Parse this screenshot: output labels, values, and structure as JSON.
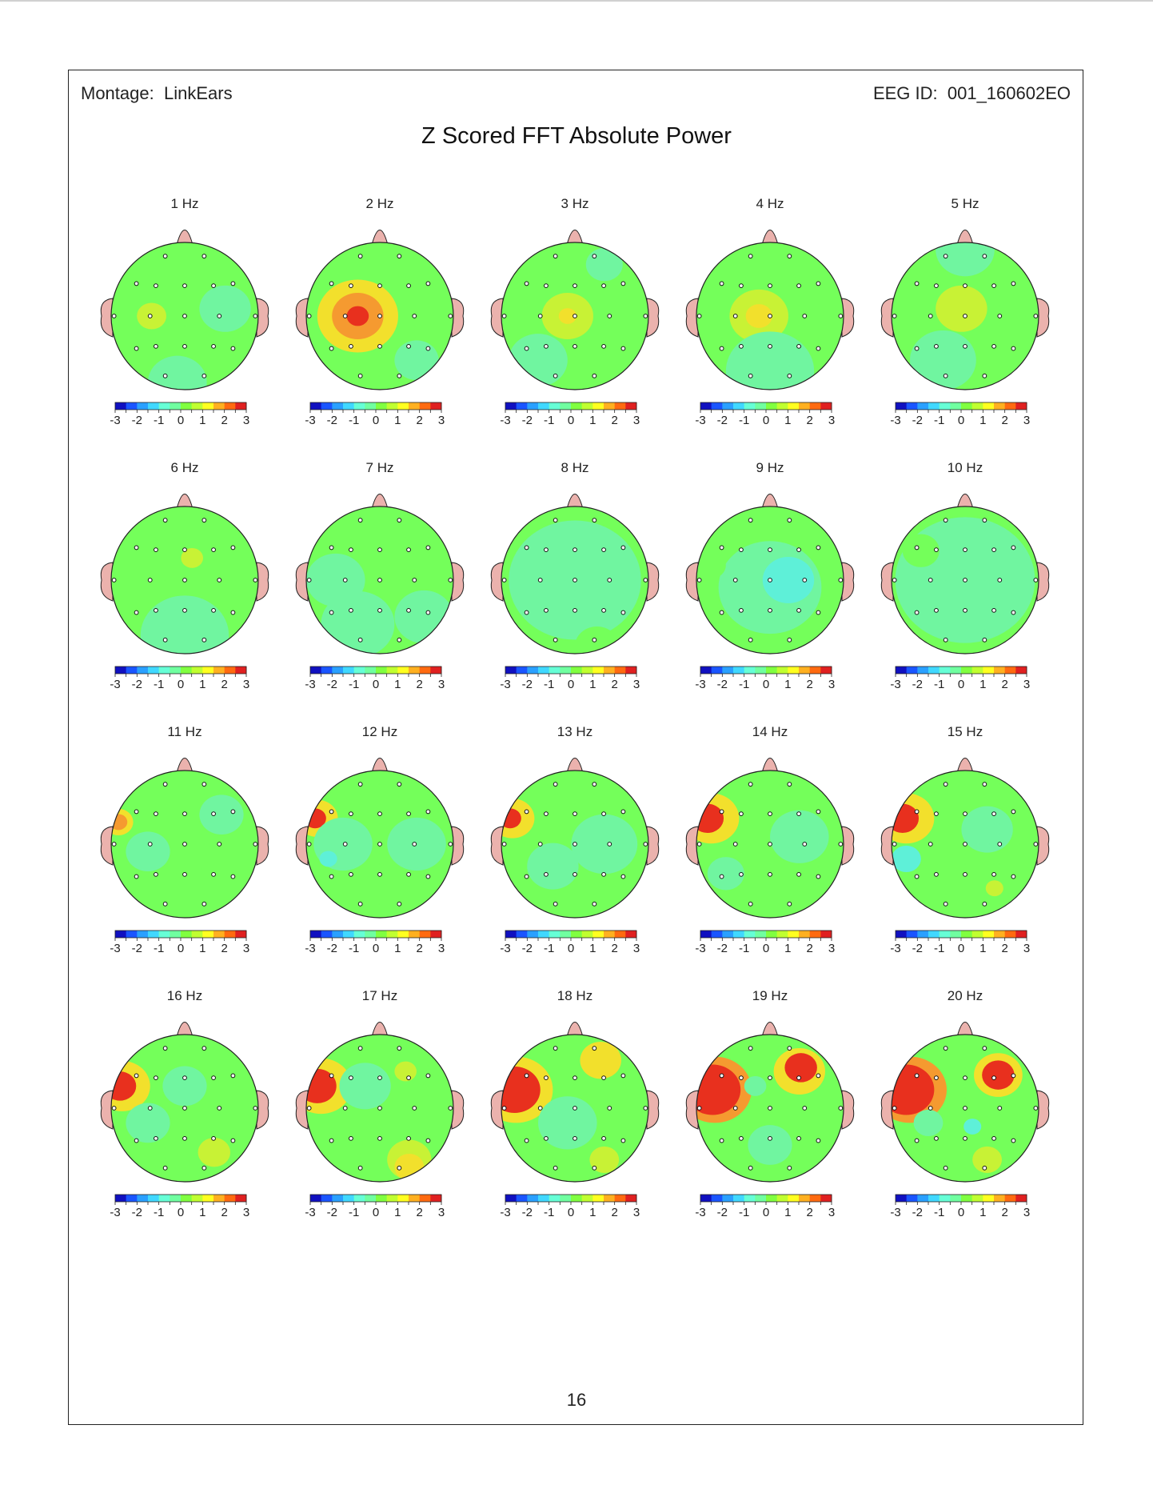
{
  "header": {
    "montage_label": "Montage:",
    "montage_value": "LinkEars",
    "eeg_id_label": "EEG ID:",
    "eeg_id_value": "001_160602EO"
  },
  "title": "Z Scored FFT Absolute Power",
  "page_number": "16",
  "colorbar": {
    "ticks": [
      "-3",
      "-2",
      "-1",
      "0",
      "1",
      "2",
      "3"
    ],
    "colors": [
      "#1010c0",
      "#1a55ff",
      "#2aa0ff",
      "#40d8ff",
      "#66ffd6",
      "#70ffa0",
      "#80ff40",
      "#c0ff30",
      "#ffff20",
      "#ffb020",
      "#ff6a10",
      "#e02020"
    ]
  },
  "scale": {
    "background": "#74ff5a",
    "cold": [
      "#70f5a0",
      "#5ef0d8",
      "#4ab8ff"
    ],
    "warm": [
      "#c8f235",
      "#f2e02c",
      "#f59a30",
      "#e8301e"
    ]
  },
  "maps": [
    {
      "label": "1 Hz",
      "blobs": [
        [
          -0.45,
          0.0,
          0.2,
          1
        ],
        [
          0.55,
          -0.1,
          0.35,
          -1
        ],
        [
          -0.1,
          0.9,
          0.4,
          -1
        ]
      ]
    },
    {
      "label": "2 Hz",
      "blobs": [
        [
          -0.3,
          0.0,
          0.55,
          2
        ],
        [
          -0.3,
          0.0,
          0.35,
          3
        ],
        [
          -0.3,
          0.0,
          0.15,
          4
        ],
        [
          0.5,
          0.6,
          0.3,
          -1
        ]
      ]
    },
    {
      "label": "3 Hz",
      "blobs": [
        [
          -0.1,
          0.0,
          0.35,
          1
        ],
        [
          -0.1,
          0.0,
          0.12,
          2
        ],
        [
          -0.5,
          0.6,
          0.4,
          -1
        ],
        [
          0.4,
          -0.7,
          0.25,
          -1
        ]
      ]
    },
    {
      "label": "4 Hz",
      "blobs": [
        [
          -0.15,
          0.0,
          0.4,
          1
        ],
        [
          -0.15,
          0.0,
          0.18,
          2
        ],
        [
          0.0,
          0.9,
          0.6,
          -2
        ],
        [
          0.0,
          0.75,
          0.6,
          -1
        ]
      ]
    },
    {
      "label": "5 Hz",
      "blobs": [
        [
          -0.05,
          -0.1,
          0.35,
          1
        ],
        [
          -0.3,
          0.6,
          0.45,
          -1
        ],
        [
          0.0,
          -0.9,
          0.4,
          -1
        ]
      ]
    },
    {
      "label": "6 Hz",
      "blobs": [
        [
          0.1,
          -0.3,
          0.15,
          1
        ],
        [
          0.0,
          0.95,
          0.6,
          -2
        ],
        [
          0.0,
          0.75,
          0.6,
          -1
        ]
      ]
    },
    {
      "label": "7 Hz",
      "blobs": [
        [
          -0.6,
          0.0,
          0.4,
          -1
        ],
        [
          -0.3,
          0.6,
          0.5,
          -1
        ],
        [
          0.6,
          0.5,
          0.4,
          -1
        ]
      ]
    },
    {
      "label": "8 Hz",
      "blobs": [
        [
          0.0,
          0.0,
          0.9,
          -1
        ],
        [
          0.3,
          0.9,
          0.3,
          0.0
        ]
      ]
    },
    {
      "label": "9 Hz",
      "blobs": [
        [
          0.0,
          0.1,
          0.7,
          -1
        ],
        [
          0.25,
          0.0,
          0.35,
          -2
        ],
        [
          -0.8,
          -0.2,
          0.2,
          0.0
        ]
      ]
    },
    {
      "label": "10 Hz",
      "blobs": [
        [
          0.0,
          0.0,
          0.95,
          -1
        ],
        [
          -0.6,
          -0.4,
          0.25,
          0.0
        ]
      ]
    },
    {
      "label": "11 Hz",
      "blobs": [
        [
          -0.9,
          -0.3,
          0.2,
          2
        ],
        [
          -0.9,
          -0.3,
          0.12,
          3
        ],
        [
          0.0,
          0.1,
          0.35,
          0.0
        ],
        [
          -0.5,
          0.1,
          0.3,
          -1
        ],
        [
          0.5,
          -0.4,
          0.3,
          -1
        ]
      ]
    },
    {
      "label": "12 Hz",
      "blobs": [
        [
          -0.85,
          -0.35,
          0.28,
          2
        ],
        [
          -0.88,
          -0.35,
          0.15,
          4
        ],
        [
          -0.5,
          0.0,
          0.4,
          -1
        ],
        [
          0.5,
          0.0,
          0.4,
          -1
        ],
        [
          -0.7,
          0.2,
          0.12,
          -2
        ]
      ]
    },
    {
      "label": "13 Hz",
      "blobs": [
        [
          -0.85,
          -0.35,
          0.3,
          2
        ],
        [
          -0.88,
          -0.35,
          0.15,
          4
        ],
        [
          0.4,
          0.0,
          0.45,
          -1
        ],
        [
          -0.3,
          0.3,
          0.35,
          -1
        ]
      ]
    },
    {
      "label": "14 Hz",
      "blobs": [
        [
          -0.8,
          -0.35,
          0.38,
          2
        ],
        [
          -0.85,
          -0.35,
          0.22,
          4
        ],
        [
          0.4,
          -0.1,
          0.4,
          -1
        ],
        [
          -0.6,
          0.4,
          0.25,
          -1
        ]
      ]
    },
    {
      "label": "15 Hz",
      "blobs": [
        [
          -0.8,
          -0.35,
          0.38,
          2
        ],
        [
          -0.85,
          -0.35,
          0.22,
          4
        ],
        [
          -0.8,
          0.2,
          0.2,
          -2
        ],
        [
          0.3,
          -0.2,
          0.35,
          -1
        ],
        [
          0.4,
          0.6,
          0.12,
          1
        ]
      ]
    },
    {
      "label": "16 Hz",
      "blobs": [
        [
          -0.85,
          -0.3,
          0.38,
          2
        ],
        [
          -0.88,
          -0.3,
          0.22,
          4
        ],
        [
          0.0,
          -0.3,
          0.3,
          -1
        ],
        [
          -0.5,
          0.2,
          0.3,
          -1
        ],
        [
          0.4,
          0.6,
          0.22,
          1
        ]
      ]
    },
    {
      "label": "17 Hz",
      "blobs": [
        [
          -0.8,
          -0.3,
          0.42,
          2
        ],
        [
          -0.85,
          -0.3,
          0.26,
          4
        ],
        [
          0.4,
          0.7,
          0.3,
          1
        ],
        [
          0.4,
          0.8,
          0.2,
          2
        ],
        [
          -0.2,
          -0.3,
          0.35,
          -1
        ],
        [
          0.35,
          -0.5,
          0.15,
          1
        ]
      ]
    },
    {
      "label": "18 Hz",
      "blobs": [
        [
          -0.8,
          -0.25,
          0.5,
          2
        ],
        [
          -0.82,
          -0.25,
          0.35,
          4
        ],
        [
          0.35,
          -0.65,
          0.28,
          2
        ],
        [
          -0.1,
          0.2,
          0.4,
          -1
        ],
        [
          0.4,
          0.7,
          0.2,
          1
        ]
      ]
    },
    {
      "label": "19 Hz",
      "blobs": [
        [
          -0.75,
          -0.25,
          0.5,
          3
        ],
        [
          -0.78,
          -0.25,
          0.38,
          4
        ],
        [
          0.4,
          -0.5,
          0.35,
          2
        ],
        [
          0.42,
          -0.55,
          0.22,
          4
        ],
        [
          -0.2,
          -0.3,
          0.15,
          -1
        ],
        [
          0.0,
          0.5,
          0.3,
          -1
        ]
      ]
    },
    {
      "label": "20 Hz",
      "blobs": [
        [
          -0.75,
          -0.25,
          0.5,
          3
        ],
        [
          -0.8,
          -0.25,
          0.38,
          4
        ],
        [
          0.45,
          -0.45,
          0.33,
          2
        ],
        [
          0.45,
          -0.45,
          0.22,
          4
        ],
        [
          -0.5,
          0.2,
          0.2,
          -1
        ],
        [
          0.1,
          0.25,
          0.12,
          -2
        ],
        [
          0.3,
          0.7,
          0.2,
          1
        ]
      ]
    }
  ]
}
